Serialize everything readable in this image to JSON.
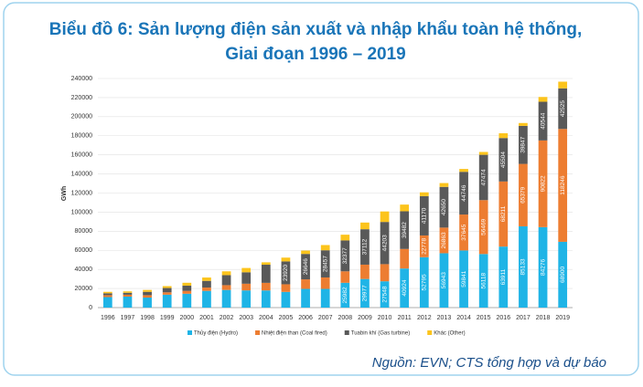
{
  "chart_data": {
    "type": "stacked_bar",
    "title": "Biểu đồ 6: Sản lượng điện sản xuất và nhập khẩu toàn hệ thống,",
    "subtitle": "Giai đoạn 1996 – 2019",
    "y_label": "GWh",
    "source": "Nguồn: EVN; CTS tổng hợp và dự báo",
    "categories": [
      "1996",
      "1997",
      "1998",
      "1999",
      "2000",
      "2001",
      "2002",
      "2003",
      "2004",
      "2005",
      "2006",
      "2007",
      "2008",
      "2009",
      "2010",
      "2011",
      "2012",
      "2013",
      "2014",
      "2015",
      "2016",
      "2017",
      "2018",
      "2019"
    ],
    "series": [
      {
        "name": "Thủy điện (Hydro)",
        "color": "#1fb4e6",
        "values": [
          11000,
          11500,
          10500,
          13500,
          14500,
          17500,
          18500,
          18000,
          17965,
          16431,
          19573,
          19573,
          25982,
          29977,
          27548,
          40924,
          52795,
          56943,
          59841,
          56118,
          63911,
          85133,
          84276,
          68900
        ]
      },
      {
        "name": "Nhiệt điện than (Coal fired)",
        "color": "#ed7d31",
        "values": [
          2000,
          2000,
          2500,
          2500,
          3000,
          3500,
          5000,
          7000,
          7965,
          8000,
          10000,
          12000,
          12000,
          15000,
          17962,
          20500,
          22778,
          26863,
          37645,
          56469,
          68211,
          65379,
          90822,
          118246
        ]
      },
      {
        "name": "Tuabin khí (Gas turbine)",
        "color": "#595959",
        "values": [
          2000,
          2000,
          3500,
          4500,
          5500,
          7000,
          10500,
          12000,
          18994,
          23920,
          26646,
          28457,
          32377,
          37112,
          44203,
          39482,
          41170,
          42650,
          44746,
          47474,
          45504,
          39847,
          40544,
          42525
        ]
      },
      {
        "name": "Khác (Other)",
        "color": "#fcc41c",
        "values": [
          1500,
          1500,
          2000,
          2000,
          3000,
          3500,
          4000,
          4500,
          2500,
          4000,
          3500,
          5500,
          6000,
          7000,
          11000,
          7000,
          4000,
          4000,
          3000,
          3000,
          5000,
          3000,
          5000,
          7000
        ]
      }
    ],
    "ylim": [
      0,
      240000
    ],
    "yticks": [
      0,
      20000,
      40000,
      60000,
      80000,
      100000,
      120000,
      140000,
      160000,
      180000,
      200000,
      220000,
      240000
    ],
    "grid": true
  }
}
